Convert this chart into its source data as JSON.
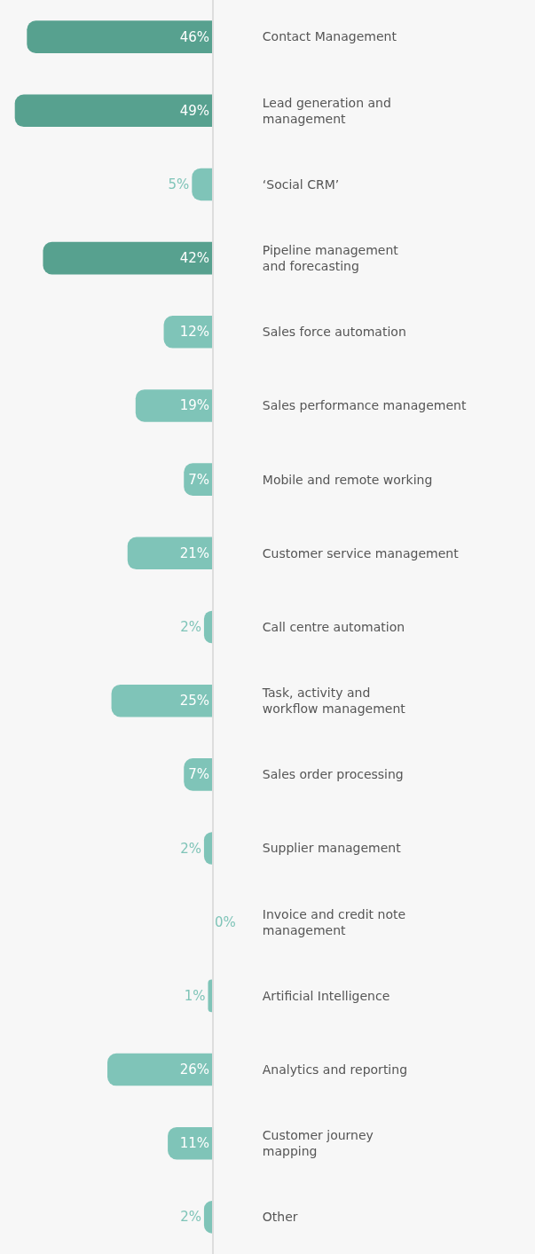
{
  "chart_data": {
    "type": "bar",
    "orientation": "horizontal",
    "tick_labels": "y",
    "value_labels": [
      "46%",
      "49%",
      "5%",
      "42%",
      "12%",
      "19%",
      "7%",
      "21%",
      "2%",
      "25%",
      "7%",
      "2%",
      "0%",
      "1%",
      "26%",
      "11%",
      "2%"
    ],
    "categories": [
      "Contact Management",
      "Lead generation and\nmanagement",
      "‘Social CRM’",
      "Pipeline management\nand forecasting",
      "Sales force automation",
      "Sales performance management",
      "Mobile and remote working",
      "Customer service management",
      "Call centre automation",
      "Task, activity and\nworkflow management",
      "Sales order processing",
      "Supplier management",
      "Invoice and credit note\nmanagement",
      "Artificial Intelligence",
      "Analytics and reporting",
      "Customer journey\nmapping",
      "Other"
    ],
    "values": [
      46,
      49,
      5,
      42,
      12,
      19,
      7,
      21,
      2,
      25,
      7,
      2,
      0,
      1,
      26,
      11,
      2
    ],
    "colors": [
      "#57a18f",
      "#57a18f",
      "#7fc4b8",
      "#57a18f",
      "#7fc4b8",
      "#7fc4b8",
      "#7fc4b8",
      "#7fc4b8",
      "#7fc4b8",
      "#7fc4b8",
      "#7fc4b8",
      "#7fc4b8",
      "#7fc4b8",
      "#7fc4b8",
      "#7fc4b8",
      "#7fc4b8",
      "#7fc4b8"
    ]
  }
}
